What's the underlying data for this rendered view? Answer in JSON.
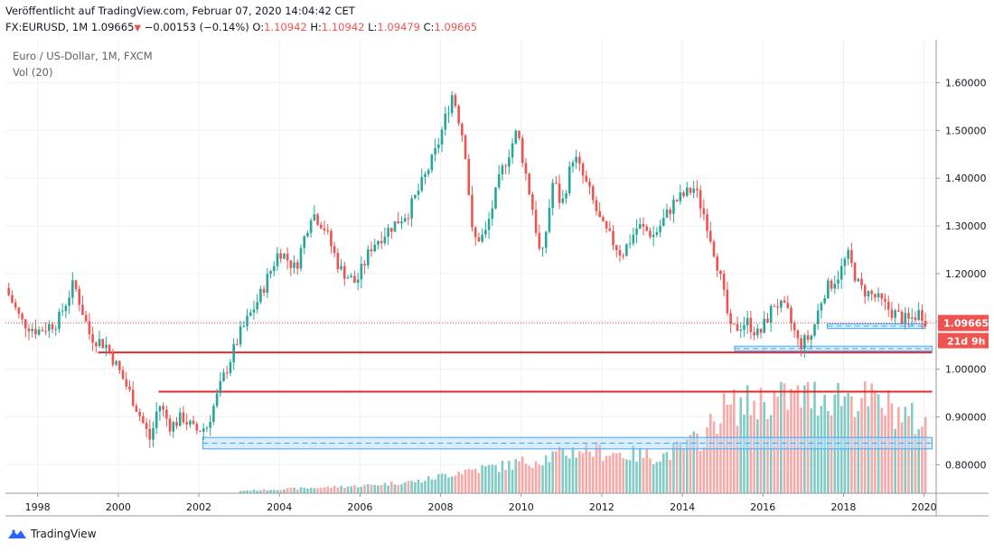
{
  "header": {
    "published": "Veröffentlicht auf TradingView.com, Februar 07, 2020 14:04:42 CET",
    "symbol": "FX:EURUSD, 1M",
    "last": "1.09665",
    "change": "−0.00153 (−0.14%)",
    "o_label": "O:",
    "o_value": "1.10942",
    "h_label": "H:",
    "h_value": "1.10942",
    "l_label": "L:",
    "l_value": "1.09479",
    "c_label": "C:",
    "c_value": "1.09665"
  },
  "legend": {
    "title": "Euro / US-Dollar, 1M, FXCM",
    "vol": "Vol (20)"
  },
  "footer": {
    "brand": "TradingView"
  },
  "colors": {
    "up": "#26a69a",
    "down": "#ef5350",
    "up_vol": "#80cbc4",
    "down_vol": "#f7a9a7",
    "hline": "#e5292b",
    "zone_fill": "#bbdefb",
    "zone_border": "#42a5f5",
    "grid": "#eef0f3"
  },
  "chart_data": {
    "type": "candlestick",
    "symbol": "EURUSD",
    "interval": "1M",
    "x_range": [
      1997.2,
      2020.3
    ],
    "ylim": [
      0.74,
      1.69
    ],
    "x_ticks": [
      {
        "label": "1998",
        "x": 1998
      },
      {
        "label": "2000",
        "x": 2000
      },
      {
        "label": "2002",
        "x": 2002
      },
      {
        "label": "2004",
        "x": 2004
      },
      {
        "label": "2006",
        "x": 2006
      },
      {
        "label": "2008",
        "x": 2008
      },
      {
        "label": "2010",
        "x": 2010
      },
      {
        "label": "2012",
        "x": 2012
      },
      {
        "label": "2014",
        "x": 2014
      },
      {
        "label": "2016",
        "x": 2016
      },
      {
        "label": "2018",
        "x": 2018
      },
      {
        "label": "2020",
        "x": 2020
      }
    ],
    "y_ticks": [
      {
        "label": "0.80000",
        "v": 0.8
      },
      {
        "label": "0.90000",
        "v": 0.9
      },
      {
        "label": "1.00000",
        "v": 1.0
      },
      {
        "label": "1.10000",
        "v": 1.1
      },
      {
        "label": "1.20000",
        "v": 1.2
      },
      {
        "label": "1.30000",
        "v": 1.3
      },
      {
        "label": "1.40000",
        "v": 1.4
      },
      {
        "label": "1.50000",
        "v": 1.5
      },
      {
        "label": "1.60000",
        "v": 1.6
      }
    ],
    "close_path": [
      [
        1997.2,
        1.17
      ],
      [
        1997.6,
        1.1
      ],
      [
        1998.0,
        1.08
      ],
      [
        1998.5,
        1.1
      ],
      [
        1998.9,
        1.18
      ],
      [
        1999.3,
        1.07
      ],
      [
        1999.7,
        1.05
      ],
      [
        2000.0,
        1.0
      ],
      [
        2000.4,
        0.93
      ],
      [
        2000.8,
        0.85
      ],
      [
        2001.0,
        0.93
      ],
      [
        2001.3,
        0.88
      ],
      [
        2001.6,
        0.9
      ],
      [
        2001.9,
        0.87
      ],
      [
        2002.2,
        0.88
      ],
      [
        2002.6,
        0.98
      ],
      [
        2003.0,
        1.07
      ],
      [
        2003.5,
        1.15
      ],
      [
        2004.0,
        1.25
      ],
      [
        2004.4,
        1.21
      ],
      [
        2004.8,
        1.33
      ],
      [
        2005.1,
        1.3
      ],
      [
        2005.5,
        1.21
      ],
      [
        2005.9,
        1.18
      ],
      [
        2006.3,
        1.26
      ],
      [
        2006.8,
        1.3
      ],
      [
        2007.2,
        1.33
      ],
      [
        2007.6,
        1.4
      ],
      [
        2007.9,
        1.46
      ],
      [
        2008.3,
        1.58
      ],
      [
        2008.6,
        1.47
      ],
      [
        2008.8,
        1.27
      ],
      [
        2009.1,
        1.28
      ],
      [
        2009.5,
        1.41
      ],
      [
        2009.9,
        1.5
      ],
      [
        2010.3,
        1.33
      ],
      [
        2010.5,
        1.22
      ],
      [
        2010.8,
        1.4
      ],
      [
        2011.0,
        1.34
      ],
      [
        2011.3,
        1.45
      ],
      [
        2011.7,
        1.37
      ],
      [
        2012.0,
        1.3
      ],
      [
        2012.5,
        1.24
      ],
      [
        2012.9,
        1.3
      ],
      [
        2013.3,
        1.28
      ],
      [
        2013.8,
        1.35
      ],
      [
        2014.3,
        1.38
      ],
      [
        2014.6,
        1.31
      ],
      [
        2014.9,
        1.21
      ],
      [
        2015.2,
        1.08
      ],
      [
        2015.6,
        1.1
      ],
      [
        2015.9,
        1.07
      ],
      [
        2016.3,
        1.14
      ],
      [
        2016.6,
        1.12
      ],
      [
        2016.9,
        1.05
      ],
      [
        2017.2,
        1.07
      ],
      [
        2017.5,
        1.16
      ],
      [
        2017.9,
        1.2
      ],
      [
        2018.1,
        1.24
      ],
      [
        2018.4,
        1.17
      ],
      [
        2018.8,
        1.15
      ],
      [
        2019.2,
        1.12
      ],
      [
        2019.6,
        1.1
      ],
      [
        2019.9,
        1.12
      ],
      [
        2020.1,
        1.09665
      ]
    ],
    "horizontal_lines": [
      {
        "value": 1.035,
        "from": 1999.5,
        "to": 2020.2
      },
      {
        "value": 0.953,
        "from": 2001.0,
        "to": 2020.2
      }
    ],
    "zones": [
      {
        "from": 2002.1,
        "to": 2020.2,
        "low": 0.833,
        "high": 0.857
      },
      {
        "from": 2015.3,
        "to": 2020.2,
        "low": 1.038,
        "high": 1.048
      },
      {
        "from": 2017.6,
        "to": 2020.0,
        "low": 1.085,
        "high": 1.095
      }
    ],
    "last_price": {
      "value": 1.09665,
      "label": "1.09665",
      "countdown": "21d 9h"
    },
    "volume_profile": [
      [
        2003.0,
        0.02
      ],
      [
        2004.5,
        0.04
      ],
      [
        2006.0,
        0.06
      ],
      [
        2007.5,
        0.1
      ],
      [
        2008.5,
        0.18
      ],
      [
        2009.5,
        0.22
      ],
      [
        2010.5,
        0.28
      ],
      [
        2011.5,
        0.36
      ],
      [
        2012.5,
        0.32
      ],
      [
        2013.5,
        0.3
      ],
      [
        2014.5,
        0.45
      ],
      [
        2015.0,
        0.68
      ],
      [
        2016.0,
        0.75
      ],
      [
        2017.0,
        0.78
      ],
      [
        2018.0,
        0.8
      ],
      [
        2019.0,
        0.72
      ],
      [
        2020.0,
        0.55
      ]
    ]
  }
}
